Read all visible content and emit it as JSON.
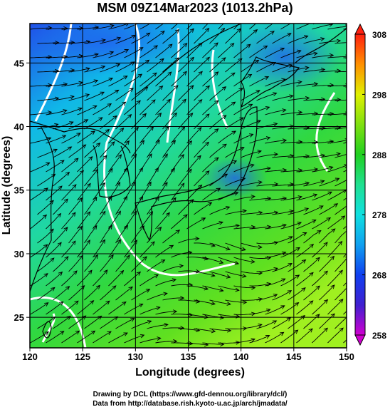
{
  "chart_data": {
    "type": "map",
    "title": "MSM 09Z14Mar2023 (1013.2hPa)",
    "x_label": "Longitude (degrees)",
    "y_label": "Latitude  (degrees)",
    "xlim": [
      120,
      150
    ],
    "xticks": [
      120,
      125,
      130,
      135,
      140,
      145,
      150
    ],
    "ylim": [
      22.6,
      48.1
    ],
    "yticks": [
      25,
      30,
      35,
      40,
      45
    ],
    "colorbar": {
      "clim": [
        258,
        308
      ],
      "ticks": [
        258,
        268,
        278,
        288,
        298,
        308
      ],
      "colors": [
        "#d000d0",
        "#4020d0",
        "#1040f0",
        "#10a0f0",
        "#10e0e0",
        "#20e090",
        "#20d020",
        "#80e010",
        "#e0f000",
        "#ff9000",
        "#ff2010"
      ]
    },
    "credits": [
      "Drawing by DCL (https://www.gfd-dennou.org/library/dcl/)",
      "Data from http://database.rish.kyoto-u.ac.jp/arch/jmadata/"
    ]
  }
}
